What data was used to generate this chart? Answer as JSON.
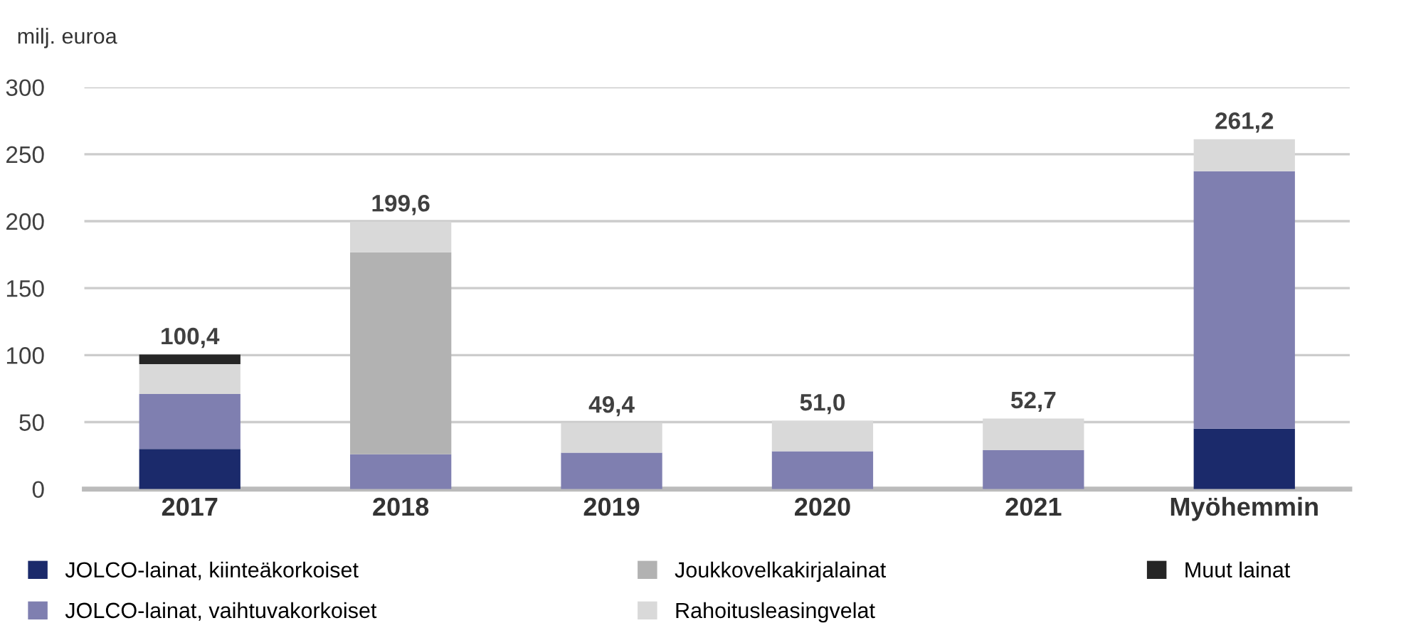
{
  "chart_data": {
    "type": "bar",
    "stacked": true,
    "ylabel": "milj. euroa",
    "categories": [
      "2017",
      "2018",
      "2019",
      "2020",
      "2021",
      "Myöhemmin"
    ],
    "series": [
      {
        "name": "JOLCO-lainat, kiinteäkorkoiset",
        "color": "#1b2a6b",
        "values": [
          30,
          null,
          null,
          null,
          null,
          45.1
        ]
      },
      {
        "name": "JOLCO-lainat, vaihtuvakorkoiset",
        "color": "#7f7fb0",
        "values": [
          41,
          26.0,
          27.1,
          28.2,
          29.2,
          192.2
        ]
      },
      {
        "name": "Joukkovelkakirjalainat",
        "color": "#b2b2b2",
        "values": [
          null,
          150.8,
          null,
          null,
          null,
          null
        ]
      },
      {
        "name": "Rahoitusleasingvelat",
        "color": "#d9d9d9",
        "values": [
          22.3,
          22.8,
          22.3,
          22.8,
          23.5,
          23.9
        ]
      },
      {
        "name": "Muut lainat",
        "color": "#262626",
        "values": [
          7.1,
          null,
          null,
          null,
          null,
          null
        ]
      }
    ],
    "totals": [
      "100,4",
      "199,6",
      "49,4",
      "51,0",
      "52,7",
      "261,2"
    ],
    "ylim": [
      0,
      300
    ],
    "yticks": [
      0,
      50,
      100,
      150,
      200,
      250,
      300
    ],
    "grid": "y",
    "legend": "bottom"
  }
}
